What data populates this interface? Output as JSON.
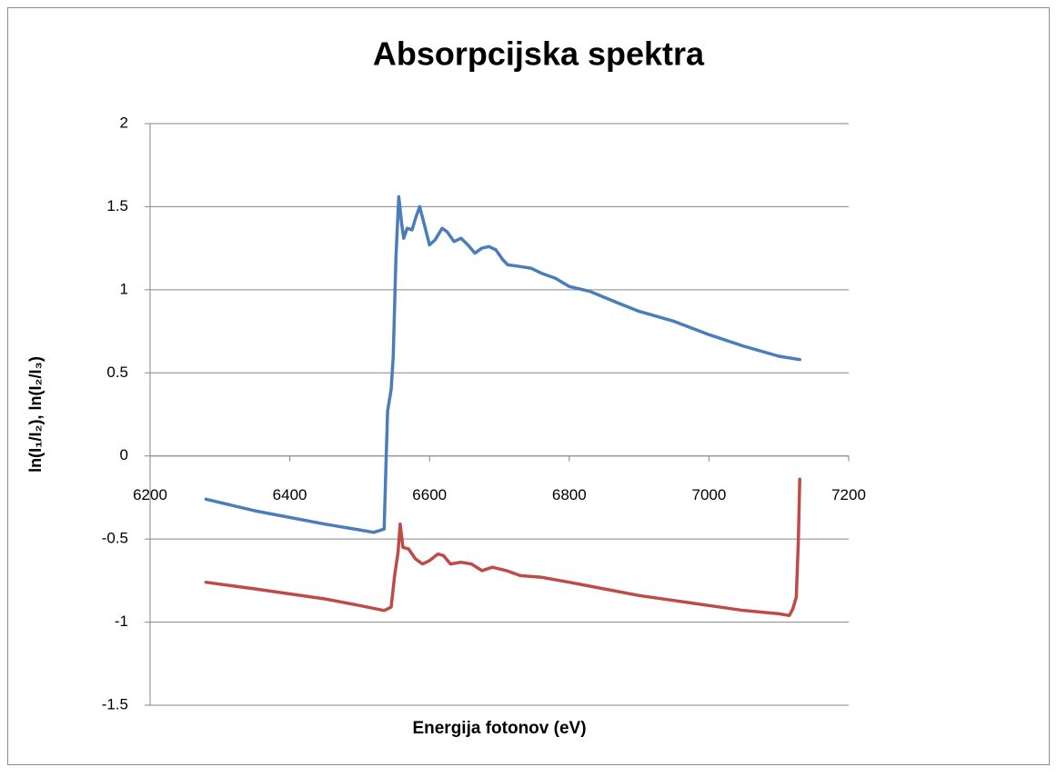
{
  "chart_data": {
    "type": "line",
    "title": "Absorpcijska spektra",
    "x_label": "Energija fotonov (eV)",
    "y_label": "ln(I₁/I₂),  ln(I₂/I₃)",
    "xlim": [
      6200,
      7200
    ],
    "xticks": [
      6200,
      6400,
      6600,
      6800,
      7000,
      7200
    ],
    "ylim": [
      -1.5,
      2
    ],
    "yticks": [
      -1.5,
      -1,
      -0.5,
      0,
      0.5,
      1,
      1.5,
      2
    ],
    "grid": true,
    "series": [
      {
        "color": "#4a7ebb",
        "x": [
          6280,
          6350,
          6400,
          6450,
          6500,
          6520,
          6535,
          6538,
          6540,
          6545,
          6548,
          6552,
          6556,
          6560,
          6563,
          6568,
          6575,
          6580,
          6586,
          6592,
          6600,
          6608,
          6618,
          6625,
          6635,
          6645,
          6655,
          6665,
          6675,
          6685,
          6695,
          6705,
          6712,
          6730,
          6745,
          6760,
          6780,
          6800,
          6830,
          6870,
          6900,
          6950,
          7000,
          7050,
          7100,
          7130
        ],
        "values": [
          -0.26,
          -0.33,
          -0.37,
          -0.41,
          -0.445,
          -0.46,
          -0.44,
          0.0,
          0.27,
          0.4,
          0.6,
          1.2,
          1.56,
          1.4,
          1.31,
          1.37,
          1.36,
          1.43,
          1.5,
          1.4,
          1.27,
          1.3,
          1.37,
          1.35,
          1.29,
          1.31,
          1.27,
          1.22,
          1.25,
          1.26,
          1.24,
          1.18,
          1.15,
          1.14,
          1.13,
          1.1,
          1.07,
          1.02,
          0.99,
          0.92,
          0.87,
          0.81,
          0.73,
          0.66,
          0.6,
          0.58
        ]
      },
      {
        "color": "#be4b48",
        "x": [
          6280,
          6350,
          6400,
          6450,
          6500,
          6535,
          6545,
          6550,
          6555,
          6558,
          6562,
          6570,
          6580,
          6590,
          6600,
          6612,
          6620,
          6630,
          6645,
          6660,
          6675,
          6690,
          6710,
          6730,
          6760,
          6800,
          6850,
          6900,
          6950,
          7000,
          7050,
          7100,
          7115,
          7120,
          7125,
          7128,
          7130
        ],
        "values": [
          -0.76,
          -0.8,
          -0.83,
          -0.86,
          -0.9,
          -0.93,
          -0.91,
          -0.72,
          -0.58,
          -0.41,
          -0.55,
          -0.56,
          -0.62,
          -0.65,
          -0.63,
          -0.59,
          -0.6,
          -0.65,
          -0.64,
          -0.65,
          -0.69,
          -0.67,
          -0.69,
          -0.72,
          -0.73,
          -0.76,
          -0.8,
          -0.84,
          -0.87,
          -0.9,
          -0.93,
          -0.95,
          -0.96,
          -0.92,
          -0.85,
          -0.5,
          -0.14
        ]
      }
    ]
  }
}
